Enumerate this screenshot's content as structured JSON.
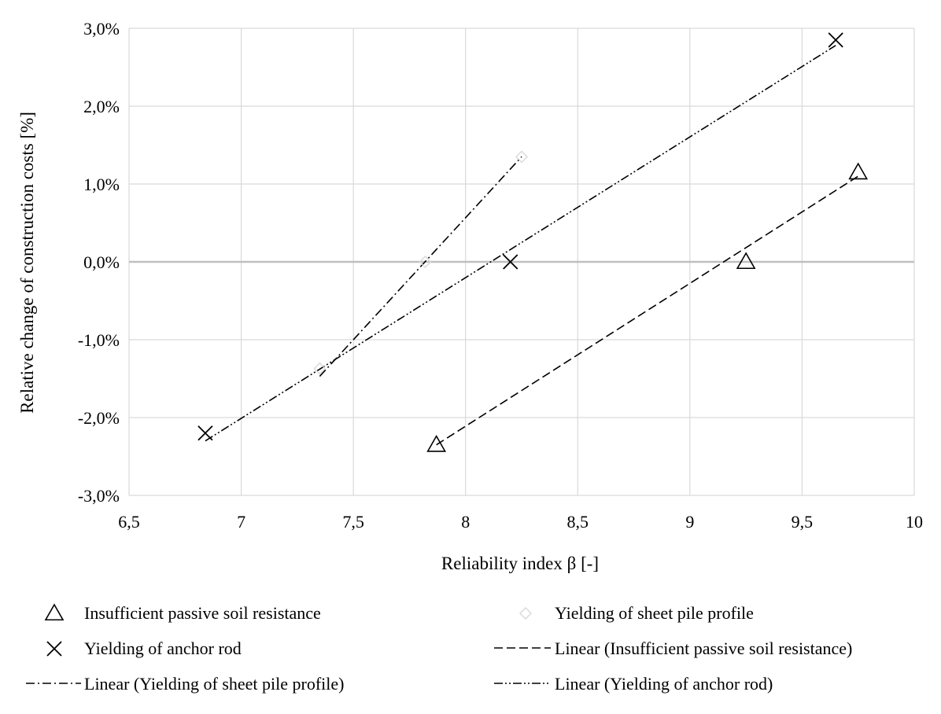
{
  "chart_data": {
    "type": "scatter",
    "title": "",
    "xlabel": "Reliability index β [-]",
    "ylabel": "Relative change of construction costs [%]",
    "xlim": [
      6.5,
      10
    ],
    "ylim": [
      -3.0,
      3.0
    ],
    "x_ticks": [
      6.5,
      7,
      7.5,
      8,
      8.5,
      9,
      9.5,
      10
    ],
    "x_tick_labels": [
      "6,5",
      "7",
      "7,5",
      "8",
      "8,5",
      "9",
      "9,5",
      "10"
    ],
    "y_ticks": [
      -3,
      -2,
      -1,
      0,
      1,
      2,
      3
    ],
    "y_tick_labels": [
      "-3,0%",
      "-2,0%",
      "-1,0%",
      "0,0%",
      "1,0%",
      "2,0%",
      "3,0%"
    ],
    "grid": true,
    "legend_position": "bottom",
    "series": [
      {
        "name": "Insufficient passive soil resistance",
        "marker": "triangle",
        "color": "#000000",
        "points": [
          [
            7.87,
            -2.35
          ],
          [
            9.25,
            0.0
          ],
          [
            9.75,
            1.15
          ]
        ]
      },
      {
        "name": "Yielding of sheet pile profile",
        "marker": "diamond",
        "color": "#d9d9d9",
        "points": [
          [
            7.35,
            -1.37
          ],
          [
            7.82,
            0.0
          ],
          [
            8.25,
            1.35
          ]
        ]
      },
      {
        "name": "Yielding of anchor rod",
        "marker": "x",
        "color": "#000000",
        "points": [
          [
            6.84,
            -2.2
          ],
          [
            8.2,
            0.0
          ],
          [
            9.65,
            2.85
          ]
        ]
      }
    ],
    "trendlines": [
      {
        "name": "Linear (Insufficient passive soil resistance)",
        "dash": "dash",
        "x": [
          7.87,
          9.75
        ],
        "y": [
          -2.35,
          1.1
        ]
      },
      {
        "name": "Linear (Yielding of sheet pile profile)",
        "dash": "dashdot",
        "x": [
          7.35,
          8.25
        ],
        "y": [
          -1.47,
          1.35
        ]
      },
      {
        "name": "Linear (Yielding of anchor rod)",
        "dash": "dashdotdot",
        "x": [
          6.84,
          9.65
        ],
        "y": [
          -2.3,
          2.78
        ]
      }
    ]
  }
}
